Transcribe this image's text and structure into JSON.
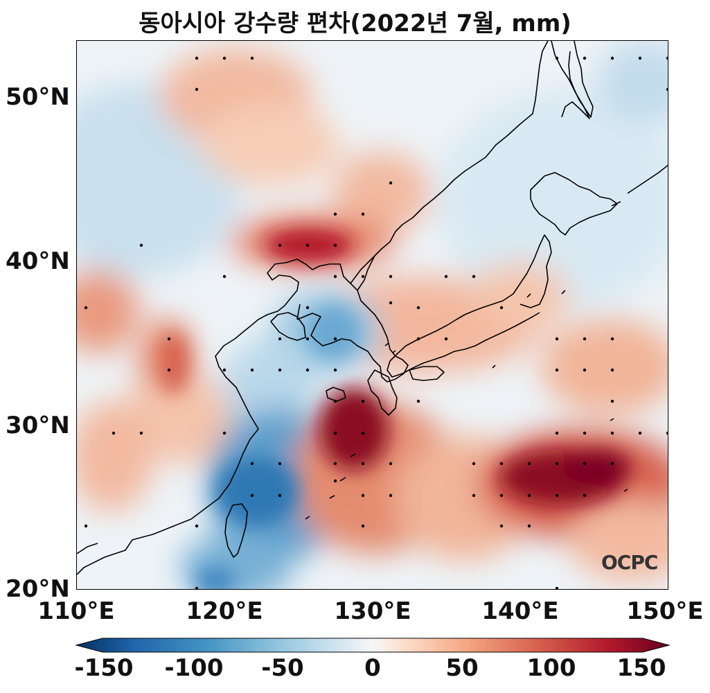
{
  "title": "동아시아 강수량 편차(2022년 7월, mm)",
  "logo": "OCPC",
  "map": {
    "lat_ticks": [
      "50°N",
      "40°N",
      "30°N",
      "20°N"
    ],
    "lon_ticks": [
      "110°E",
      "120°E",
      "130°E",
      "140°E",
      "150°E"
    ],
    "lon_range": [
      110,
      150
    ],
    "lat_range": [
      20,
      53.5
    ]
  },
  "colorbar": {
    "ticks": [
      "-150",
      "-100",
      "-50",
      "0",
      "50",
      "100",
      "150"
    ],
    "range": [
      -150,
      150
    ],
    "colormap": "RdBu_r",
    "colors": [
      "#053061",
      "#2166ac",
      "#4393c3",
      "#92c5de",
      "#d1e5f0",
      "#f7f7f7",
      "#fddbc7",
      "#f4a582",
      "#d6604d",
      "#b2182b",
      "#67001f"
    ]
  }
}
